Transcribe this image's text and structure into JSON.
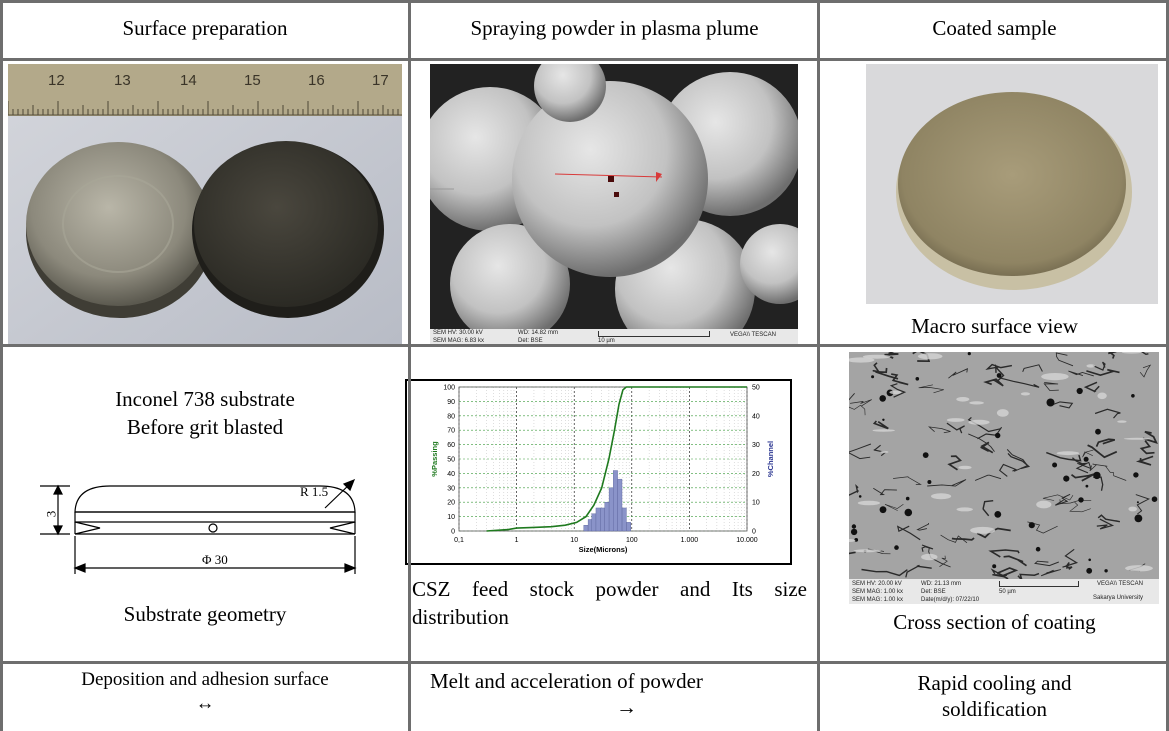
{
  "headers": {
    "surface": "Surface preparation",
    "spraying": "Spraying powder in plasma plume",
    "coated": "Coated sample"
  },
  "row1": {
    "ruler_numbers": [
      "12",
      "13",
      "14",
      "15",
      "16",
      "17"
    ],
    "sem": {
      "hv": "SEM HV: 30.00 kV",
      "mag": "SEM MAG: 6.83 kx",
      "wd": "WD: 14.82 mm",
      "det": "Det: BSE",
      "scale": "10 µm",
      "brand": "VEGA\\\\ TESCAN"
    },
    "macro_caption": "Macro surface view"
  },
  "row2": {
    "substrate_line1": "Inconel 738 substrate",
    "substrate_line2": "Before grit blasted",
    "dims": {
      "height": "3",
      "radius": "R 1.5",
      "diameter": "Φ 30"
    },
    "geometry_caption": "Substrate geometry",
    "powder_caption": "CSZ feed stock powder and Its size distribution",
    "sem2": {
      "hv": "SEM HV: 20.00 kV",
      "mag": "SEM MAG: 1.00 kx",
      "mag2": "SEM MAG: 1.00 kx",
      "wd": "WD: 21.13 mm",
      "det": "Det: BSE",
      "date": "Date(m/d/y): 07/22/10",
      "scale": "50 µm",
      "brand": "VEGA\\\\ TESCAN",
      "univ": "Sakarya University"
    },
    "cross_caption": "Cross section of coating"
  },
  "row3": {
    "deposition": "Deposition and adhesion surface",
    "deposition_arrow": "↔",
    "melt": "Melt and acceleration of powder",
    "melt_arrow": "→",
    "cooling1": "Rapid cooling and",
    "cooling2": "soldification"
  },
  "chart_data": {
    "type": "line",
    "xlabel": "Size(Microns)",
    "ylabel": "%Passing",
    "y2label": "%Channel",
    "x_scale": "log",
    "x_ticks": [
      "0,1",
      "1",
      "10",
      "100",
      "1.000",
      "10.000"
    ],
    "y_ticks": [
      "0",
      "10",
      "20",
      "30",
      "40",
      "50",
      "60",
      "70",
      "80",
      "90",
      "100"
    ],
    "y2_ticks": [
      "0",
      "10",
      "20",
      "30",
      "40",
      "50"
    ],
    "ylim": [
      0,
      100
    ],
    "y2lim": [
      0,
      50
    ],
    "grid": true,
    "passing": [
      {
        "x": 0.3,
        "y": 0
      },
      {
        "x": 0.7,
        "y": 1
      },
      {
        "x": 1,
        "y": 2
      },
      {
        "x": 2,
        "y": 2.5
      },
      {
        "x": 4,
        "y": 3
      },
      {
        "x": 7,
        "y": 4
      },
      {
        "x": 11,
        "y": 6
      },
      {
        "x": 16,
        "y": 10
      },
      {
        "x": 22,
        "y": 18
      },
      {
        "x": 30,
        "y": 30
      },
      {
        "x": 40,
        "y": 50
      },
      {
        "x": 50,
        "y": 70
      },
      {
        "x": 60,
        "y": 88
      },
      {
        "x": 70,
        "y": 98
      },
      {
        "x": 80,
        "y": 100
      },
      {
        "x": 10000,
        "y": 100
      }
    ],
    "channel": [
      {
        "x": 16,
        "y": 2
      },
      {
        "x": 19,
        "y": 4
      },
      {
        "x": 22,
        "y": 6
      },
      {
        "x": 26,
        "y": 8
      },
      {
        "x": 31,
        "y": 8
      },
      {
        "x": 37,
        "y": 10
      },
      {
        "x": 44,
        "y": 15
      },
      {
        "x": 52,
        "y": 21
      },
      {
        "x": 62,
        "y": 18
      },
      {
        "x": 74,
        "y": 8
      },
      {
        "x": 88,
        "y": 3
      }
    ],
    "passing_color": "#1f7a1f",
    "channel_color": "#8a93c9"
  }
}
